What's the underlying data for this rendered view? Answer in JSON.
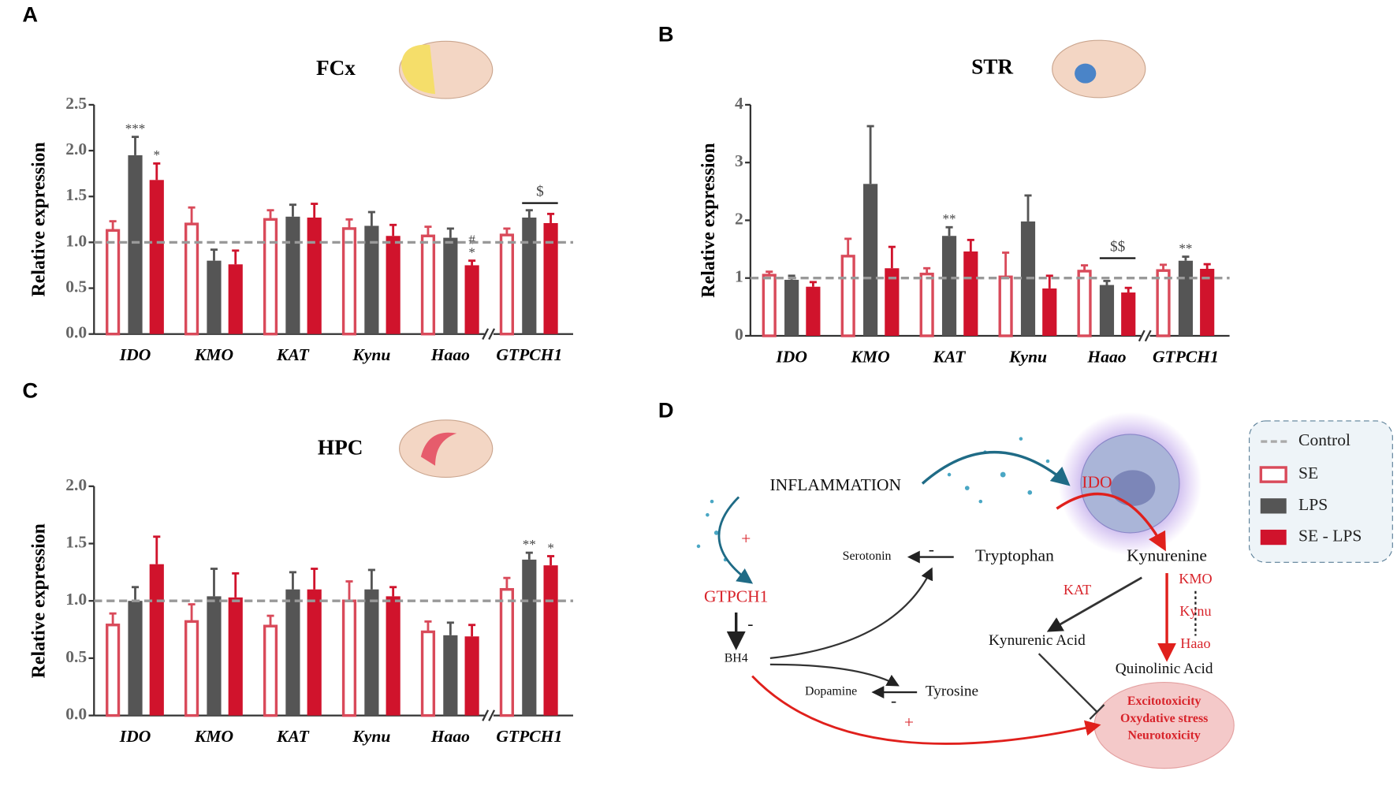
{
  "chart_data": [
    {
      "type": "bar",
      "panel": "A",
      "title": "FCx",
      "y_label": "Relative expression",
      "categories": [
        "IDO",
        "KMO",
        "KAT",
        "Kynu",
        "Haao",
        "GTPCH1"
      ],
      "series": [
        {
          "name": "SE",
          "color": "#d94a5a",
          "values": [
            1.13,
            1.2,
            1.25,
            1.15,
            1.07,
            1.08
          ],
          "errors": [
            0.1,
            0.18,
            0.1,
            0.1,
            0.1,
            0.07
          ],
          "significance": [
            null,
            null,
            null,
            null,
            null,
            null
          ]
        },
        {
          "name": "LPS",
          "color": "#555555",
          "values": [
            1.95,
            0.8,
            1.28,
            1.18,
            1.05,
            1.27
          ],
          "errors": [
            0.2,
            0.12,
            0.13,
            0.15,
            0.1,
            0.08
          ],
          "significance": [
            [
              "***"
            ],
            null,
            null,
            null,
            null,
            null
          ]
        },
        {
          "name": "SE - LPS",
          "color": "#d0132c",
          "values": [
            1.68,
            0.76,
            1.27,
            1.07,
            0.75,
            1.21
          ],
          "errors": [
            0.18,
            0.15,
            0.15,
            0.12,
            0.05,
            0.1
          ],
          "significance": [
            [
              "*"
            ],
            null,
            null,
            null,
            [
              "#",
              "*"
            ],
            null
          ]
        }
      ],
      "ylim": [
        0,
        2.5
      ],
      "yticks": [
        {
          "value": 0,
          "label": "0.0"
        },
        0.5,
        {
          "value": 1,
          "label": "1.0"
        },
        1.5,
        {
          "value": 2,
          "label": "2.0"
        },
        2.5
      ],
      "control_line": 1,
      "brackets": [
        {
          "category": "GTPCH1",
          "text": "$"
        }
      ]
    },
    {
      "type": "bar",
      "panel": "B",
      "title": "STR",
      "y_label": "Relative expression",
      "categories": [
        "IDO",
        "KMO",
        "KAT",
        "Kynu",
        "Haao",
        "GTPCH1"
      ],
      "series": [
        {
          "color": "#d94a5a",
          "values": [
            1.05,
            1.38,
            1.07,
            1.02,
            1.12,
            1.13
          ],
          "errors": [
            0.06,
            0.3,
            0.1,
            0.42,
            0.1,
            0.1
          ],
          "significance": [
            null,
            null,
            null,
            null,
            null,
            null
          ]
        },
        {
          "color": "#555555",
          "values": [
            0.97,
            2.63,
            1.73,
            1.98,
            0.88,
            1.3
          ],
          "errors": [
            0.07,
            1.0,
            0.15,
            0.45,
            0.07,
            0.07
          ],
          "significance": [
            null,
            null,
            [
              "**"
            ],
            null,
            null,
            [
              "**"
            ]
          ]
        },
        {
          "color": "#d0132c",
          "values": [
            0.85,
            1.17,
            1.46,
            0.82,
            0.75,
            1.16
          ],
          "errors": [
            0.08,
            0.37,
            0.2,
            0.22,
            0.08,
            0.08
          ],
          "significance": [
            null,
            null,
            null,
            null,
            null,
            null
          ]
        }
      ],
      "ylim": [
        0,
        4
      ],
      "yticks": [
        0,
        1,
        2,
        3,
        4
      ],
      "control_line": 1,
      "brackets": [
        {
          "category": "Haao",
          "text": "$$"
        }
      ]
    },
    {
      "type": "bar",
      "panel": "C",
      "title": "HPC",
      "y_label": "Relative expression",
      "categories": [
        "IDO",
        "KMO",
        "KAT",
        "Kynu",
        "Haao",
        "GTPCH1"
      ],
      "series": [
        {
          "color": "#d94a5a",
          "values": [
            0.79,
            0.82,
            0.78,
            1.0,
            0.73,
            1.1
          ],
          "errors": [
            0.1,
            0.15,
            0.09,
            0.17,
            0.09,
            0.1
          ],
          "significance": [
            null,
            null,
            null,
            null,
            null,
            null
          ]
        },
        {
          "color": "#555555",
          "values": [
            1.0,
            1.04,
            1.1,
            1.1,
            0.7,
            1.36
          ],
          "errors": [
            0.12,
            0.24,
            0.15,
            0.17,
            0.11,
            0.06
          ],
          "significance": [
            null,
            null,
            null,
            null,
            null,
            [
              "**"
            ]
          ]
        },
        {
          "color": "#d0132c",
          "values": [
            1.32,
            1.03,
            1.1,
            1.04,
            0.69,
            1.31
          ],
          "errors": [
            0.24,
            0.21,
            0.18,
            0.08,
            0.1,
            0.08
          ],
          "significance": [
            null,
            null,
            null,
            null,
            null,
            [
              "*"
            ]
          ]
        }
      ],
      "ylim": [
        0,
        2
      ],
      "yticks": [
        {
          "value": 0,
          "label": "0.0"
        },
        0.5,
        {
          "value": 1,
          "label": "1.0"
        },
        1.5,
        {
          "value": 2,
          "label": "2.0"
        }
      ],
      "control_line": 1,
      "brackets": []
    }
  ],
  "legend": {
    "control": "Control"
  },
  "diagram": {
    "panel": "D",
    "nodes": [
      "INFLAMMATION",
      "IDO",
      "Serotonin",
      "Tryptophan",
      "Kynurenine",
      "KAT",
      "KMO",
      "Kynu",
      "Haao",
      "GTPCH1",
      "BH4",
      "Kynurenic Acid",
      "Quinolinic Acid",
      "Dopamine",
      "Tyrosine",
      "Excitotoxicity",
      "Oxydative stress",
      "Neurotoxicity"
    ],
    "signs": [
      "+",
      "-",
      "-",
      "-",
      "+"
    ]
  }
}
